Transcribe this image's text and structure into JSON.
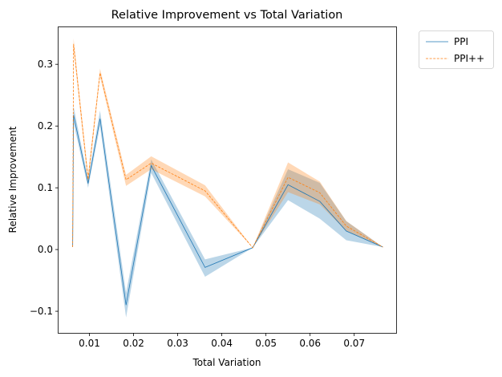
{
  "chart_data": {
    "type": "line",
    "title": "Relative Improvement vs Total Variation",
    "xlabel": "Total Variation",
    "ylabel": "Relative Improvement",
    "xlim": [
      0.003,
      0.0795
    ],
    "ylim": [
      -0.135,
      0.36
    ],
    "xticks": [
      0.01,
      0.02,
      0.03,
      0.04,
      0.05,
      0.06,
      0.07
    ],
    "xtick_labels": [
      "0.01",
      "0.02",
      "0.03",
      "0.04",
      "0.05",
      "0.06",
      "0.07"
    ],
    "yticks": [
      -0.1,
      0.0,
      0.1,
      0.2,
      0.3
    ],
    "ytick_labels": [
      "−0.1",
      "0.0",
      "0.1",
      "0.2",
      "0.3"
    ],
    "grid": false,
    "legend_position": "outside-top-right",
    "x": [
      0.0062,
      0.0064,
      0.0097,
      0.0124,
      0.0183,
      0.024,
      0.0362,
      0.047,
      0.055,
      0.0622,
      0.0682,
      0.0765
    ],
    "series": [
      {
        "name": "PPI",
        "color": "#1f77b4",
        "linestyle": "solid",
        "values": [
          0.004,
          0.218,
          0.107,
          0.212,
          -0.09,
          0.136,
          -0.029,
          0.003,
          0.105,
          0.078,
          0.03,
          0.004
        ],
        "lower": [
          0.004,
          0.205,
          0.1,
          0.2,
          -0.11,
          0.124,
          -0.044,
          0.003,
          0.08,
          0.05,
          0.015,
          0.004
        ],
        "upper": [
          0.004,
          0.232,
          0.114,
          0.225,
          -0.07,
          0.146,
          -0.016,
          0.003,
          0.13,
          0.108,
          0.046,
          0.004
        ]
      },
      {
        "name": "PPI++",
        "color": "#ff7f0e",
        "linestyle": "dashed",
        "values": [
          0.004,
          0.333,
          0.114,
          0.286,
          0.113,
          0.14,
          0.095,
          0.003,
          0.117,
          0.092,
          0.038,
          0.004
        ],
        "lower": [
          0.004,
          0.324,
          0.105,
          0.28,
          0.103,
          0.13,
          0.086,
          0.003,
          0.093,
          0.073,
          0.03,
          0.004
        ],
        "upper": [
          0.004,
          0.342,
          0.122,
          0.293,
          0.121,
          0.151,
          0.104,
          0.003,
          0.141,
          0.11,
          0.046,
          0.004
        ]
      }
    ]
  }
}
